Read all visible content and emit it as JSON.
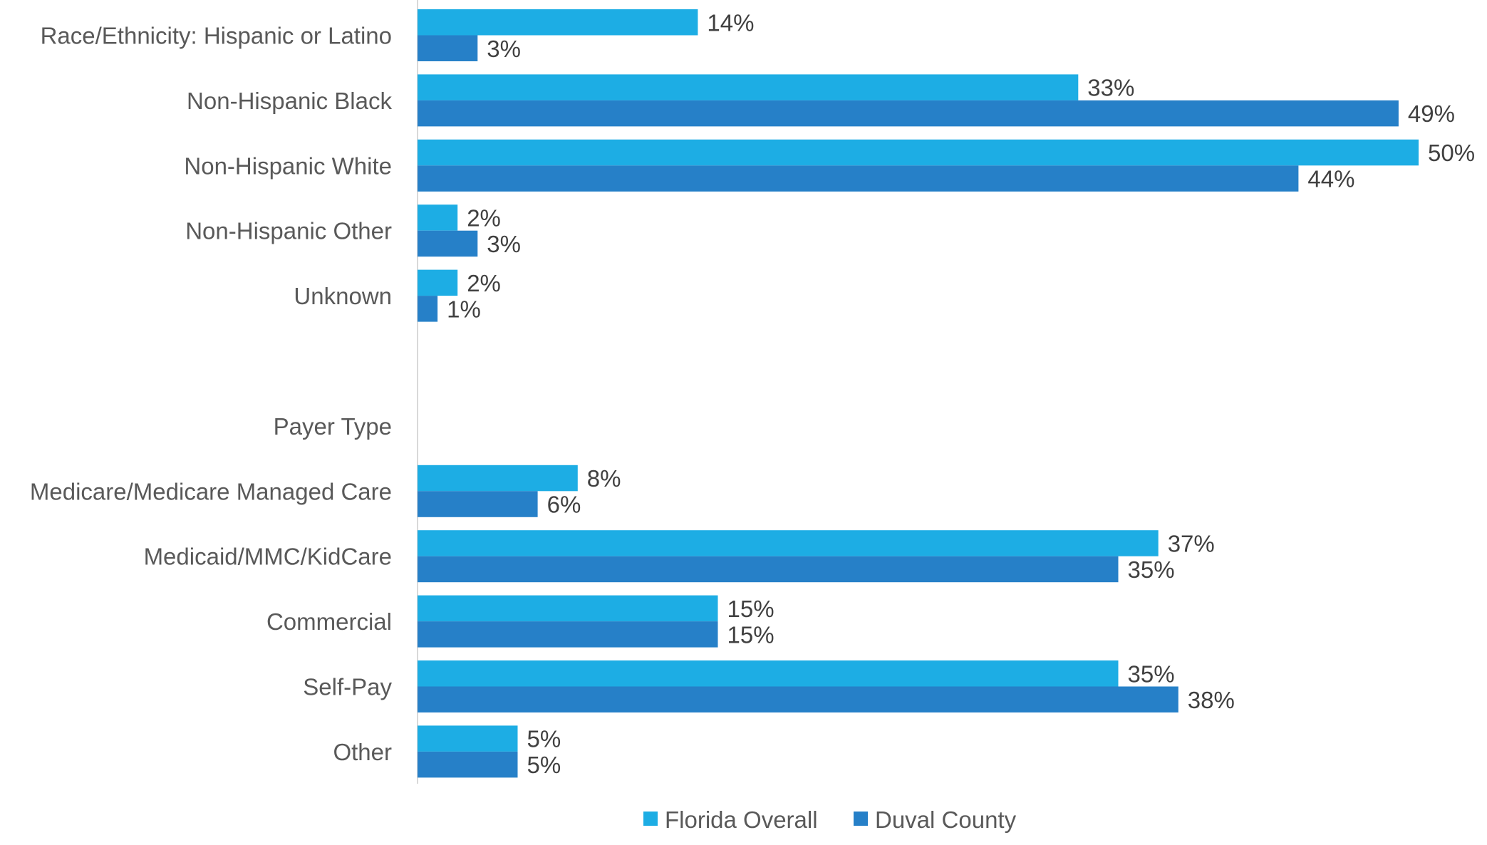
{
  "chart_data": {
    "type": "bar",
    "orientation": "horizontal",
    "categories": [
      "Race/Ethnicity: Hispanic or Latino",
      "Non-Hispanic Black",
      "Non-Hispanic White",
      "Non-Hispanic Other ",
      "Unknown",
      "",
      "Payer Type",
      "Medicare/Medicare Managed Care",
      "Medicaid/MMC/KidCare",
      "Commercial",
      "Self-Pay",
      "Other"
    ],
    "series": [
      {
        "name": "Florida Overall",
        "color": "#1DADE4",
        "values": [
          14,
          33,
          50,
          2,
          2,
          null,
          null,
          8,
          37,
          15,
          35,
          5
        ],
        "labels": [
          "14%",
          "33%",
          "50%",
          "2%",
          "2%",
          "",
          "",
          "8%",
          "37%",
          "15%",
          "35%",
          "5%"
        ]
      },
      {
        "name": "Duval County",
        "color": "#2680C8",
        "values": [
          3,
          49,
          44,
          3,
          1,
          null,
          null,
          6,
          35,
          15,
          38,
          5
        ],
        "labels": [
          "3%",
          "49%",
          "44%",
          "3%",
          "1%",
          "",
          "",
          "6%",
          "35%",
          "15%",
          "38%",
          "5%"
        ]
      }
    ],
    "xlim": [
      0,
      50
    ],
    "legend": "bottom-center",
    "grid": false,
    "value_axis_visible": false
  }
}
